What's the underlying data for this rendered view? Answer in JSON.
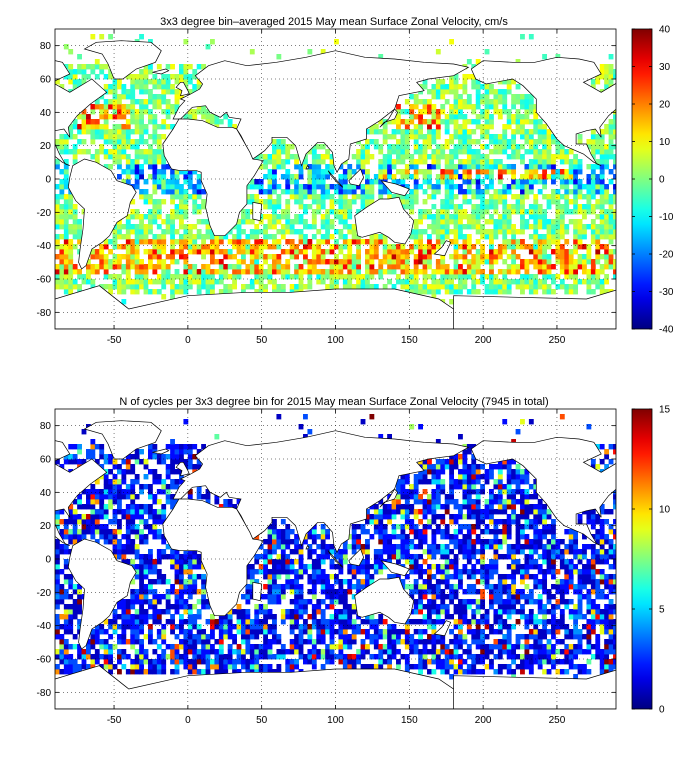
{
  "chart_data": [
    {
      "type": "heatmap",
      "title": "3x3 degree bin–averaged 2015 May mean Surface Zonal Velocity, cm/s",
      "xlim": [
        -90,
        290
      ],
      "ylim": [
        -90,
        90
      ],
      "x_ticks": [
        -50,
        0,
        50,
        100,
        150,
        200,
        250
      ],
      "y_ticks": [
        80,
        60,
        40,
        20,
        0,
        -20,
        -40,
        -60,
        -80
      ],
      "x_tick_labels": [
        "-50",
        "0",
        "50",
        "100",
        "150",
        "200",
        "250"
      ],
      "y_tick_labels": [
        "80",
        "60",
        "40",
        "20",
        "0",
        "-20",
        "-40",
        "-60",
        "-80"
      ],
      "colorbar": {
        "min": -40,
        "max": 40,
        "ticks": [
          40,
          30,
          20,
          10,
          0,
          -10,
          -20,
          -30,
          -40
        ],
        "tick_labels": [
          "40",
          "30",
          "20",
          "10",
          "0",
          "-10",
          "-20",
          "-30",
          "-40"
        ],
        "colormap": "jet"
      },
      "grid": true,
      "bin_size_deg": 3,
      "seed": 12345
    },
    {
      "type": "heatmap",
      "title": "N of cycles per 3x3 degree bin for 2015 May mean Surface Zonal Velocity (7945 in total)",
      "xlim": [
        -90,
        290
      ],
      "ylim": [
        -90,
        90
      ],
      "x_ticks": [
        -50,
        0,
        50,
        100,
        150,
        200,
        250
      ],
      "y_ticks": [
        80,
        60,
        40,
        20,
        0,
        -20,
        -40,
        -60,
        -80
      ],
      "x_tick_labels": [
        "-50",
        "0",
        "50",
        "100",
        "150",
        "200",
        "250"
      ],
      "y_tick_labels": [
        "80",
        "60",
        "40",
        "20",
        "0",
        "-20",
        "-40",
        "-60",
        "-80"
      ],
      "colorbar": {
        "min": 0,
        "max": 15,
        "ticks": [
          15,
          10,
          5,
          0
        ],
        "tick_labels": [
          "15",
          "10",
          "5",
          "0"
        ],
        "colormap": "jet"
      },
      "grid": true,
      "bin_size_deg": 3,
      "seed": 67890
    }
  ]
}
